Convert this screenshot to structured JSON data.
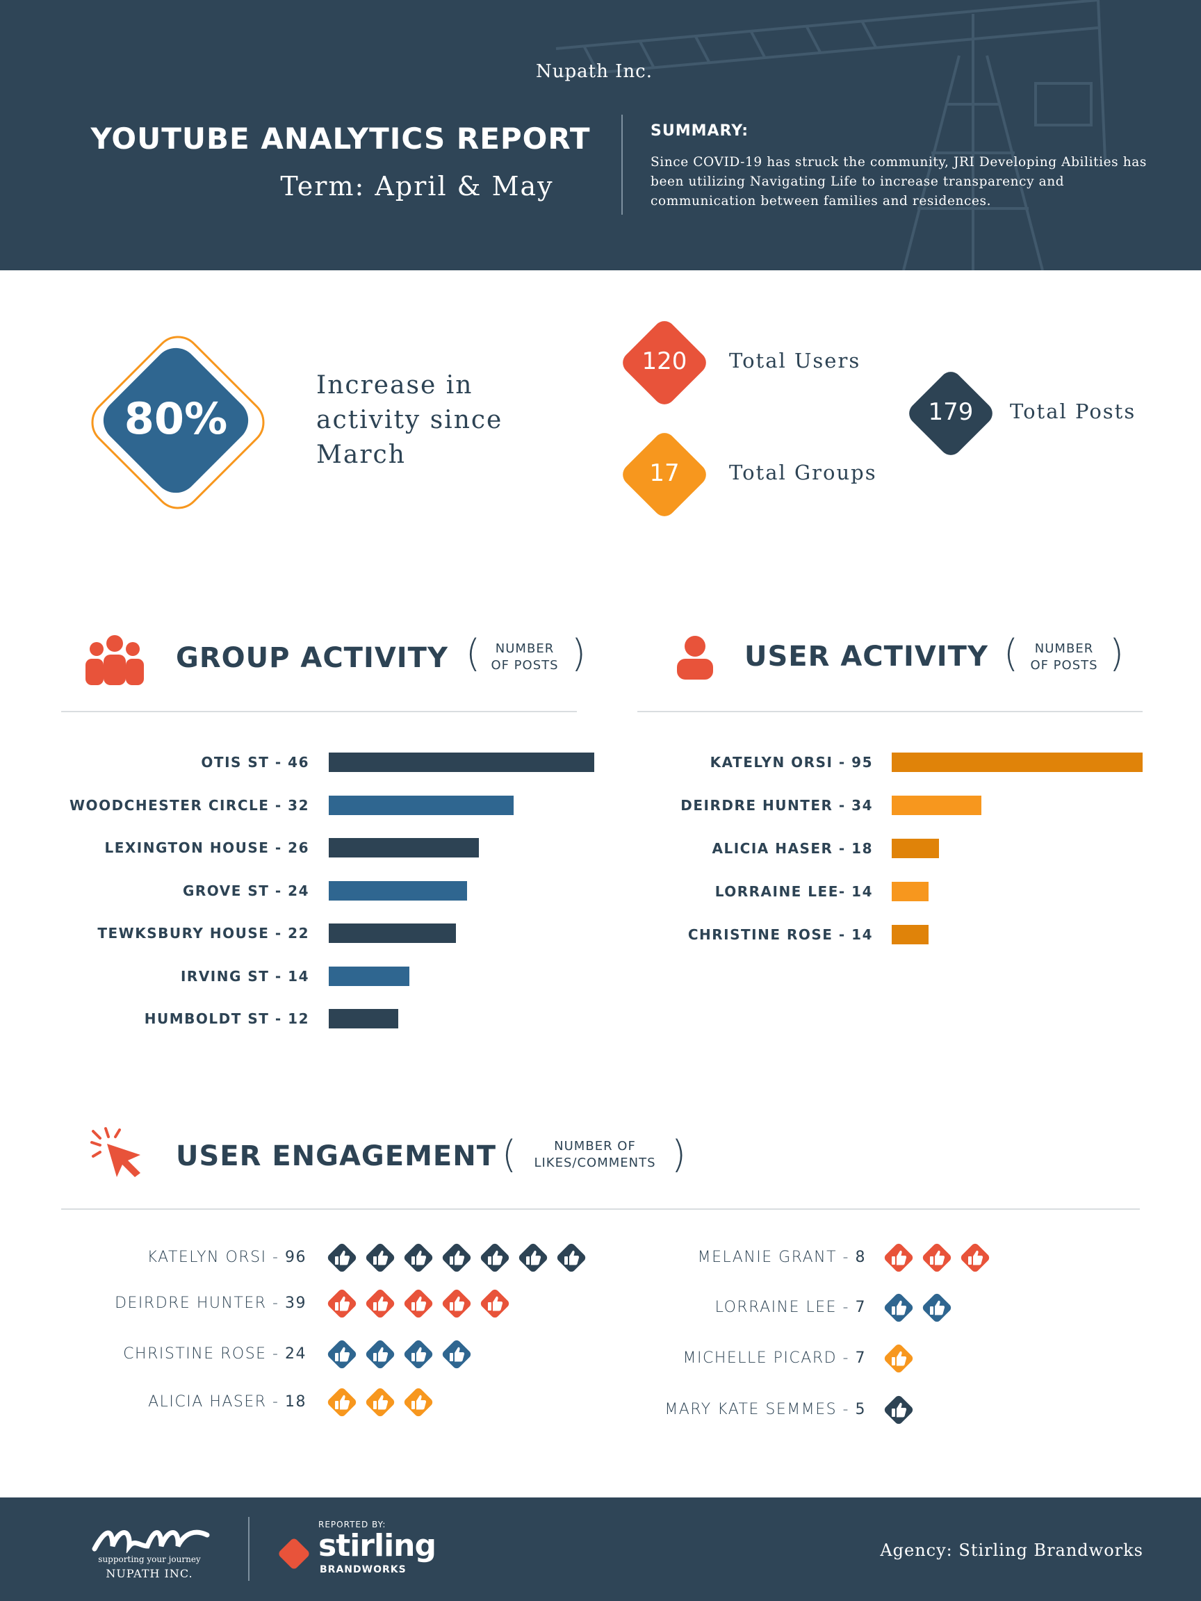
{
  "header": {
    "company": "Nupath Inc.",
    "title": "YOUTUBE ANALYTICS REPORT",
    "term": "Term: April & May",
    "summary_heading": "SUMMARY:",
    "summary": "Since COVID-19 has struck the community, JRI Developing Abilities has been utilizing Navigating Life to increase transparency and communication between families and residences."
  },
  "stats": {
    "highlight": {
      "value": "80%",
      "text": "Increase in activity since March"
    },
    "items": [
      {
        "value": 120,
        "label": "Total Users",
        "color": "#e8533a"
      },
      {
        "value": 17,
        "label": "Total Groups",
        "color": "#f7971e"
      },
      {
        "value": 179,
        "label": "Total Posts",
        "color": "#2d4354"
      }
    ]
  },
  "group_activity": {
    "title": "GROUP ACTIVITY",
    "note_line1": "NUMBER",
    "note_line2": "OF POSTS",
    "colors": [
      "#2d4354",
      "#2f6690"
    ],
    "items": [
      {
        "name": "OTIS ST -",
        "value": 46
      },
      {
        "name": "WOODCHESTER CIRCLE -",
        "value": 32
      },
      {
        "name": "LEXINGTON HOUSE -",
        "value": 26
      },
      {
        "name": "GROVE ST -",
        "value": 24
      },
      {
        "name": "TEWKSBURY HOUSE -",
        "value": 22
      },
      {
        "name": "IRVING ST -",
        "value": 14
      },
      {
        "name": "HUMBOLDT ST -",
        "value": 12
      }
    ]
  },
  "user_activity": {
    "title": "USER ACTIVITY",
    "note_line1": "NUMBER",
    "note_line2": "OF POSTS",
    "colors": [
      "#e08309",
      "#f7971e"
    ],
    "items": [
      {
        "name": "KATELYN ORSI -",
        "value": 95
      },
      {
        "name": "DEIRDRE HUNTER -",
        "value": 34
      },
      {
        "name": "ALICIA HASER -",
        "value": 18
      },
      {
        "name": "LORRAINE LEE-",
        "value": 14
      },
      {
        "name": "CHRISTINE ROSE -",
        "value": 14
      }
    ]
  },
  "user_engagement": {
    "title": "USER ENGAGEMENT",
    "note_line1": "NUMBER OF",
    "note_line2": "LIKES/COMMENTS",
    "left": [
      {
        "name": "KATELYN ORSI -",
        "value": 96,
        "icons": 7,
        "color": "#2d4354"
      },
      {
        "name": "DEIRDRE HUNTER -",
        "value": 39,
        "icons": 5,
        "color": "#e8533a"
      },
      {
        "name": "CHRISTINE ROSE -",
        "value": 24,
        "icons": 4,
        "color": "#2f6690"
      },
      {
        "name": "ALICIA HASER -",
        "value": 18,
        "icons": 3,
        "color": "#f7971e"
      }
    ],
    "right": [
      {
        "name": "MELANIE GRANT -",
        "value": 8,
        "icons": 3,
        "color": "#e8533a"
      },
      {
        "name": "LORRAINE LEE -",
        "value": 7,
        "icons": 2,
        "color": "#2f6690"
      },
      {
        "name": "MICHELLE PICARD -",
        "value": 7,
        "icons": 1,
        "color": "#f7971e"
      },
      {
        "name": "MARY KATE SEMMES -",
        "value": 5,
        "icons": 1,
        "color": "#2d4354"
      }
    ]
  },
  "footer": {
    "tagline": "supporting your journey",
    "logo_name": "NUPATH INC.",
    "reported_by": "REPORTED BY:",
    "brand": "stirling",
    "brand_sub": "BRANDWORKS",
    "agency": "Agency: Stirling Brandworks"
  }
}
